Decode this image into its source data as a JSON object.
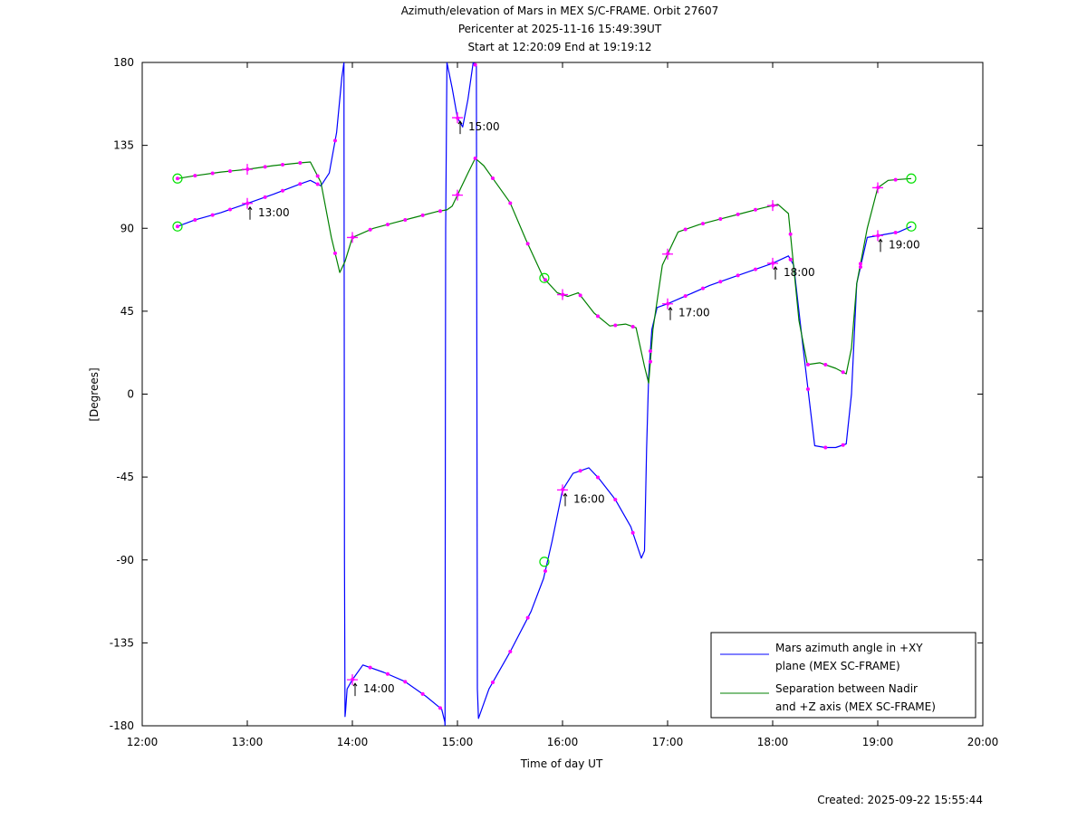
{
  "chart_data": {
    "type": "line",
    "title_lines": [
      "Azimuth/elevation of Mars in MEX S/C-FRAME.  Orbit 27607",
      "Pericenter at 2025-11-16 15:49:39UT",
      "Start at 12:20:09 End at 19:19:12"
    ],
    "xlabel": "Time of day UT",
    "ylabel": "[Degrees]",
    "xlim": [
      12.0,
      20.0
    ],
    "ylim": [
      -180,
      180
    ],
    "x_ticks": [
      12,
      13,
      14,
      15,
      16,
      17,
      18,
      19,
      20
    ],
    "x_tick_labels": [
      "12:00",
      "13:00",
      "14:00",
      "15:00",
      "16:00",
      "17:00",
      "18:00",
      "19:00",
      "20:00"
    ],
    "y_ticks": [
      180,
      135,
      90,
      45,
      0,
      -45,
      -90,
      -135,
      -180
    ],
    "y_tick_labels": [
      "180",
      "135",
      "90",
      "45",
      "0",
      "-45",
      "-90",
      "-135",
      "-180"
    ],
    "grid": false,
    "legend_placement": "bottom-right",
    "series": [
      {
        "name": "Mars azimuth angle in +XY plane (MEX SC-FRAME)",
        "legend_lines": [
          "Mars azimuth angle in +XY",
          "plane (MEX SC-FRAME)"
        ],
        "color": "#0000ff",
        "x": [
          12.336,
          12.5,
          12.75,
          13.0,
          13.25,
          13.5,
          13.6,
          13.7,
          13.78,
          13.85,
          13.9,
          13.92,
          13.925,
          13.93,
          13.935,
          13.95,
          14.0,
          14.1,
          14.3,
          14.5,
          14.7,
          14.85,
          14.88,
          14.882,
          14.885,
          14.888,
          14.9,
          14.95,
          15.0,
          15.05,
          15.1,
          15.15,
          15.18,
          15.185,
          15.19,
          15.2,
          15.3,
          15.5,
          15.7,
          15.82,
          15.9,
          16.0,
          16.1,
          16.25,
          16.35,
          16.5,
          16.65,
          16.75,
          16.78,
          16.8,
          16.82,
          16.85,
          16.9,
          17.0,
          17.2,
          17.4,
          17.6,
          17.8,
          18.0,
          18.15,
          18.2,
          18.3,
          18.4,
          18.5,
          18.6,
          18.7,
          18.75,
          18.8,
          18.9,
          19.0,
          19.1,
          19.2,
          19.319
        ],
        "y": [
          91,
          94.5,
          98.5,
          103.5,
          108.5,
          114,
          116,
          113,
          120,
          142,
          172,
          180,
          -90,
          -175,
          -172,
          -160,
          -155,
          -147,
          -151,
          -156,
          -164,
          -171,
          -178,
          -180,
          0,
          90,
          180,
          166,
          150,
          145,
          160,
          180,
          178,
          0,
          -160,
          -176,
          -160,
          -140,
          -118,
          -100,
          -80,
          -52,
          -43,
          -40,
          -46,
          -57,
          -72,
          -89,
          -85,
          -30,
          10,
          35,
          47,
          49,
          54,
          59,
          63,
          67,
          71,
          75,
          70,
          20,
          -28,
          -29,
          -29,
          -27,
          0,
          60,
          85,
          86,
          87,
          88,
          91
        ]
      },
      {
        "name": "Separation between Nadir and +Z axis (MEX SC-FRAME)",
        "legend_lines": [
          "Separation between Nadir",
          "and +Z axis (MEX SC-FRAME)"
        ],
        "color": "#008000",
        "x": [
          12.336,
          12.5,
          12.75,
          13.0,
          13.25,
          13.5,
          13.6,
          13.7,
          13.8,
          13.88,
          13.93,
          14.0,
          14.2,
          14.4,
          14.6,
          14.8,
          14.9,
          14.95,
          15.0,
          15.1,
          15.17,
          15.25,
          15.35,
          15.5,
          15.65,
          15.82,
          15.95,
          16.05,
          16.15,
          16.3,
          16.45,
          16.6,
          16.7,
          16.78,
          16.82,
          16.86,
          16.95,
          17.1,
          17.3,
          17.5,
          17.7,
          17.9,
          18.05,
          18.15,
          18.25,
          18.33,
          18.45,
          18.6,
          18.7,
          18.75,
          18.8,
          18.9,
          19.0,
          19.1,
          19.2,
          19.319
        ],
        "y": [
          117,
          118.5,
          120.5,
          122,
          124,
          125.5,
          126,
          115,
          85,
          66,
          72,
          85,
          90,
          93,
          96,
          99,
          100,
          102,
          108,
          120,
          128,
          124,
          116,
          104,
          84,
          63,
          55,
          53,
          55,
          44,
          37,
          38,
          36,
          15,
          6,
          35,
          70,
          88,
          92,
          95,
          98,
          101,
          103,
          98,
          40,
          16,
          17,
          14,
          11,
          25,
          60,
          90,
          112,
          116,
          116.5,
          117
        ]
      }
    ],
    "annotations": [
      {
        "text": "13:00",
        "x": 13.0,
        "y": 103.5
      },
      {
        "text": "14:00",
        "x": 14.0,
        "y": -155
      },
      {
        "text": "15:00",
        "x": 15.0,
        "y": 150
      },
      {
        "text": "16:00",
        "x": 16.0,
        "y": -52
      },
      {
        "text": "17:00",
        "x": 17.0,
        "y": 49
      },
      {
        "text": "18:00",
        "x": 18.0,
        "y": 71
      },
      {
        "text": "19:00",
        "x": 19.0,
        "y": 86
      }
    ],
    "footer": "Created: 2025-09-22 15:55:44",
    "marker_color": "#ff00ff",
    "endpoint_marker_color": "#00e000"
  }
}
